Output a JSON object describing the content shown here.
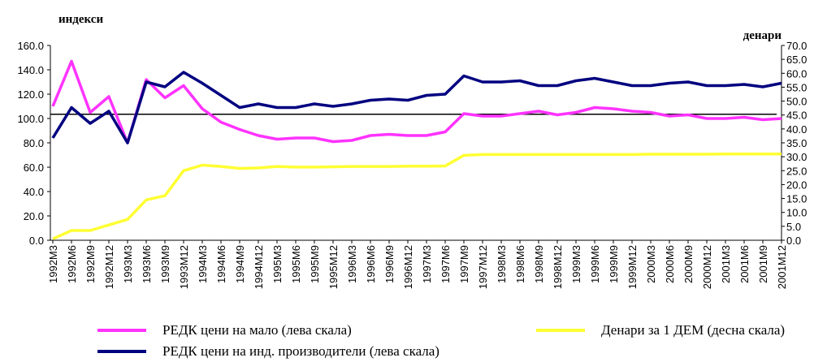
{
  "chart_data": {
    "type": "line",
    "y_label": "индекси",
    "y2_label": "денари",
    "categories": [
      "1992M3",
      "1992M6",
      "1992M9",
      "1992M12",
      "1993M3",
      "1993M6",
      "1993M9",
      "1993M12",
      "1994M3",
      "1994M6",
      "1994M9",
      "1994M12",
      "1995M3",
      "1995M6",
      "1995M9",
      "1995M12",
      "1996M3",
      "1996M6",
      "1996M9",
      "1996M12",
      "1997M3",
      "1997M6",
      "1997M9",
      "1997M12",
      "1998M3",
      "1998M6",
      "1998M9",
      "1998M12",
      "1999M3",
      "1999M6",
      "1999M9",
      "1999M12",
      "2000M3",
      "2000M6",
      "2000M9",
      "2000M12",
      "2001M3",
      "2001M6",
      "2001M9",
      "2001M12"
    ],
    "ylim": [
      0,
      160
    ],
    "yticks": [
      {
        "value": 0,
        "label": "0.0"
      },
      {
        "value": 20,
        "label": "20.0"
      },
      {
        "value": 40,
        "label": "40.0"
      },
      {
        "value": 60,
        "label": "60.0"
      },
      {
        "value": 80,
        "label": "80.0"
      },
      {
        "value": 100,
        "label": "100.0"
      },
      {
        "value": 120,
        "label": "120.0"
      },
      {
        "value": 140,
        "label": "140.0"
      },
      {
        "value": 160,
        "label": "160.0"
      }
    ],
    "y2lim": [
      0,
      70
    ],
    "y2ticks": [
      {
        "value": 0,
        "label": "0.0"
      },
      {
        "value": 5,
        "label": "5.0"
      },
      {
        "value": 10,
        "label": "10.0"
      },
      {
        "value": 15,
        "label": "15.0"
      },
      {
        "value": 20,
        "label": "20.0"
      },
      {
        "value": 25,
        "label": "25.0"
      },
      {
        "value": 30,
        "label": "30.0"
      },
      {
        "value": 35,
        "label": "35.0"
      },
      {
        "value": 40,
        "label": "40.0"
      },
      {
        "value": 45,
        "label": "45.0"
      },
      {
        "value": 50,
        "label": "50.0"
      },
      {
        "value": 55,
        "label": "55.0"
      },
      {
        "value": 60,
        "label": "60.0"
      },
      {
        "value": 65,
        "label": "65.0"
      },
      {
        "value": 70,
        "label": "70.0"
      }
    ],
    "reference_line": 103.5,
    "series": [
      {
        "name": "РЕДК цени на мало (лева скала)",
        "color": "#ff33ff",
        "values": [
          110,
          147,
          105,
          118,
          80,
          132,
          117,
          127,
          108,
          97,
          91,
          86,
          83,
          84,
          84,
          81,
          82,
          86,
          87,
          86,
          86,
          89,
          104,
          102,
          102,
          104,
          106,
          103,
          105,
          109,
          108,
          106,
          105,
          102,
          103,
          100,
          100,
          101,
          99,
          100
        ]
      },
      {
        "name": "Денари за 1 ДЕМ (десна скала)",
        "color": "#ffff33",
        "axis": "y2",
        "values": [
          0.5,
          3.5,
          3.5,
          5.5,
          7.5,
          14.5,
          16,
          25,
          27,
          26.5,
          25.8,
          26,
          26.5,
          26.3,
          26.3,
          26.4,
          26.5,
          26.5,
          26.5,
          26.6,
          26.6,
          26.7,
          30.5,
          30.8,
          30.8,
          30.8,
          30.8,
          30.8,
          30.8,
          30.8,
          30.8,
          30.8,
          30.9,
          30.9,
          30.9,
          30.9,
          31,
          31,
          31,
          31
        ]
      },
      {
        "name": "РЕДК цени на инд. производители (лева скала)",
        "color": "#000080",
        "values": [
          84,
          109,
          96,
          106,
          80,
          130,
          126,
          138,
          129,
          119,
          109,
          112,
          109,
          109,
          112,
          110,
          112,
          115,
          116,
          115,
          119,
          120,
          135,
          130,
          130,
          131,
          127,
          127,
          131,
          133,
          130,
          127,
          127,
          129,
          130,
          127,
          127,
          128,
          126,
          129
        ]
      }
    ]
  }
}
